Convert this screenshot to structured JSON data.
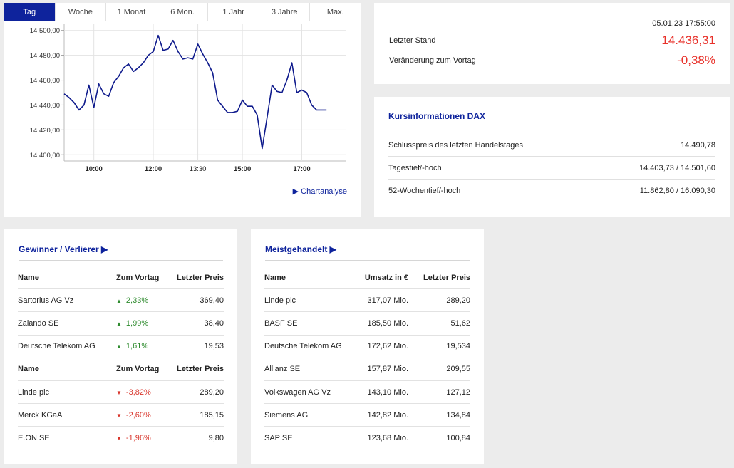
{
  "chart": {
    "tabs": [
      {
        "label": "Tag",
        "active": true
      },
      {
        "label": "Woche",
        "active": false
      },
      {
        "label": "1 Monat",
        "active": false
      },
      {
        "label": "6 Mon.",
        "active": false
      },
      {
        "label": "1 Jahr",
        "active": false
      },
      {
        "label": "3 Jahre",
        "active": false
      },
      {
        "label": "Max.",
        "active": false
      }
    ],
    "link_label": "Chartanalyse",
    "line_color": "#0e1a8c"
  },
  "chart_data": {
    "type": "line",
    "y_ticks": [
      "14.500,00",
      "14.480,00",
      "14.460,00",
      "14.440,00",
      "14.420,00",
      "14.400,00"
    ],
    "x_ticks": [
      "10:00",
      "12:00",
      "13:30",
      "15:00",
      "17:00"
    ],
    "ylim": [
      14395,
      14505
    ],
    "series": [
      {
        "x": [
          "09:00",
          "09:10",
          "09:20",
          "09:30",
          "09:40",
          "09:50",
          "10:00",
          "10:10",
          "10:20",
          "10:30",
          "10:40",
          "10:50",
          "11:00",
          "11:10",
          "11:20",
          "11:30",
          "11:40",
          "11:50",
          "12:00",
          "12:10",
          "12:20",
          "12:30",
          "12:40",
          "12:50",
          "13:00",
          "13:10",
          "13:20",
          "13:30",
          "13:40",
          "13:50",
          "14:00",
          "14:10",
          "14:20",
          "14:30",
          "14:40",
          "14:50",
          "15:00",
          "15:10",
          "15:20",
          "15:30",
          "15:40",
          "15:50",
          "16:00",
          "16:10",
          "16:20",
          "16:30",
          "16:40",
          "16:50",
          "17:00",
          "17:10",
          "17:20",
          "17:30",
          "17:40",
          "17:50"
        ],
        "y": [
          14449,
          14446,
          14442,
          14436,
          14440,
          14456,
          14438,
          14457,
          14449,
          14447,
          14458,
          14463,
          14470,
          14473,
          14467,
          14470,
          14474,
          14480,
          14483,
          14496,
          14484,
          14485,
          14492,
          14483,
          14477,
          14478,
          14477,
          14489,
          14481,
          14474,
          14466,
          14444,
          14439,
          14434,
          14434,
          14435,
          14444,
          14439,
          14439,
          14432,
          14405,
          14430,
          14456,
          14451,
          14450,
          14460,
          14474,
          14450,
          14452,
          14450,
          14440,
          14436,
          14436,
          14436
        ]
      }
    ]
  },
  "quote": {
    "datetime": "05.01.23 17:55:00",
    "last_label": "Letzter Stand",
    "last_value": "14.436,31",
    "change_label": "Veränderung zum Vortag",
    "change_value": "-0,38%",
    "negative_color": "#e8312a"
  },
  "info": {
    "title": "Kursinformationen DAX",
    "rows": [
      {
        "label": "Schlusspreis des letzten Handelstages",
        "value": "14.490,78"
      },
      {
        "label": "Tagestief/-hoch",
        "value": "14.403,73 / 14.501,60"
      },
      {
        "label": "52-Wochentief/-hoch",
        "value": "11.862,80 / 16.090,30"
      }
    ]
  },
  "gainers": {
    "title": "Gewinner / Verlierer ▶",
    "headers": {
      "name": "Name",
      "change": "Zum Vortag",
      "price": "Letzter Preis"
    },
    "winners": [
      {
        "name": "Sartorius AG Vz",
        "change": "2,33%",
        "price": "369,40"
      },
      {
        "name": "Zalando SE",
        "change": "1,99%",
        "price": "38,40"
      },
      {
        "name": "Deutsche Telekom AG",
        "change": "1,61%",
        "price": "19,53"
      }
    ],
    "losers": [
      {
        "name": "Linde plc",
        "change": "-3,82%",
        "price": "289,20"
      },
      {
        "name": "Merck KGaA",
        "change": "-2,60%",
        "price": "185,15"
      },
      {
        "name": "E.ON SE",
        "change": "-1,96%",
        "price": "9,80"
      }
    ],
    "up_color": "#2e8b2e",
    "down_color": "#d8342a"
  },
  "active": {
    "title": "Meistgehandelt ▶",
    "headers": {
      "name": "Name",
      "turnover": "Umsatz in €",
      "price": "Letzter Preis"
    },
    "rows": [
      {
        "name": "Linde plc",
        "turnover": "317,07 Mio.",
        "price": "289,20"
      },
      {
        "name": "BASF SE",
        "turnover": "185,50 Mio.",
        "price": "51,62"
      },
      {
        "name": "Deutsche Telekom AG",
        "turnover": "172,62 Mio.",
        "price": "19,534"
      },
      {
        "name": "Allianz SE",
        "turnover": "157,87 Mio.",
        "price": "209,55"
      },
      {
        "name": "Volkswagen AG Vz",
        "turnover": "143,10 Mio.",
        "price": "127,12"
      },
      {
        "name": "Siemens AG",
        "turnover": "142,82 Mio.",
        "price": "134,84"
      },
      {
        "name": "SAP SE",
        "turnover": "123,68 Mio.",
        "price": "100,84"
      }
    ]
  }
}
